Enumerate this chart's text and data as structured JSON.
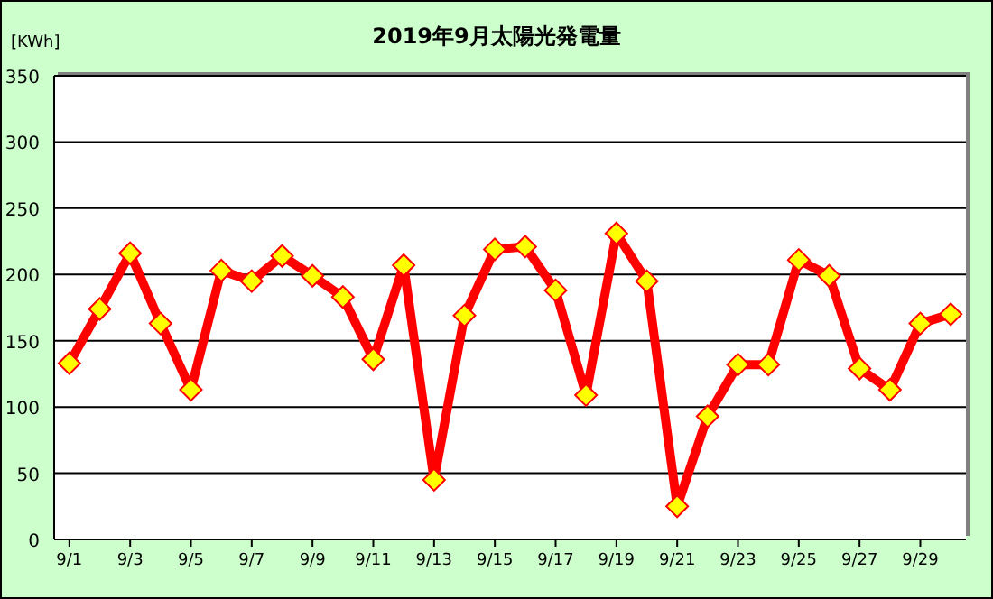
{
  "chart_data": {
    "type": "line",
    "title": "2019年9月太陽光発電量",
    "ylabel": "[KWh]",
    "categories": [
      "9/1",
      null,
      "9/3",
      null,
      "9/5",
      null,
      "9/7",
      null,
      "9/9",
      null,
      "9/11",
      null,
      "9/13",
      null,
      "9/15",
      null,
      "9/17",
      null,
      "9/19",
      null,
      "9/21",
      null,
      "9/23",
      null,
      "9/25",
      null,
      "9/27",
      null,
      "9/29",
      null
    ],
    "series": [
      {
        "color": "#ff0000",
        "values": [
          133,
          174,
          216,
          163,
          113,
          203,
          195,
          214,
          199,
          183,
          136,
          207,
          45,
          169,
          219,
          221,
          188,
          109,
          231,
          195,
          25,
          93,
          132,
          132,
          211,
          199,
          129,
          113,
          163,
          170
        ]
      }
    ],
    "ylim": [
      0,
      350
    ],
    "yticks": [
      0,
      50,
      100,
      150,
      200,
      250,
      300,
      350
    ],
    "grid": "y",
    "marker": "diamond",
    "line_style": "solid"
  }
}
